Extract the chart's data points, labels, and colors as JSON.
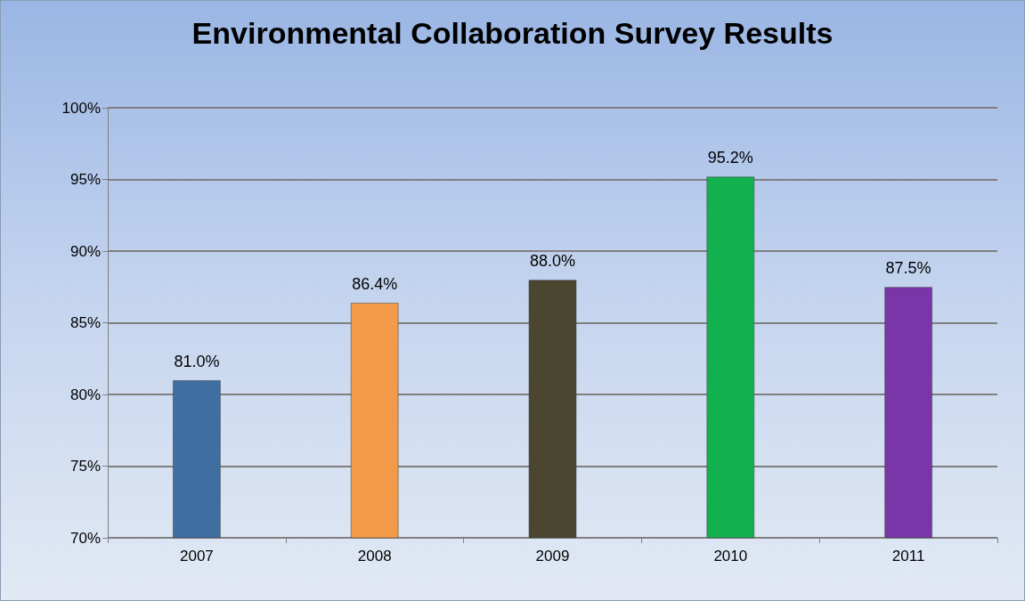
{
  "chart_data": {
    "type": "bar",
    "title": "Environmental Collaboration Survey Results",
    "categories": [
      "2007",
      "2008",
      "2009",
      "2010",
      "2011"
    ],
    "values": [
      81.0,
      86.4,
      88.0,
      95.2,
      87.5
    ],
    "colors": [
      "#3f6ea0",
      "#f39a48",
      "#4a4630",
      "#12b04f",
      "#7a36a8"
    ],
    "value_labels": [
      "81.0%",
      "86.4%",
      "88.0%",
      "95.2%",
      "87.5%"
    ],
    "ylim": [
      70,
      100
    ],
    "yticks": [
      {
        "value": 70,
        "label": "70%"
      },
      {
        "value": 75,
        "label": "75%"
      },
      {
        "value": 80,
        "label": "80%"
      },
      {
        "value": 85,
        "label": "85%"
      },
      {
        "value": 90,
        "label": "90%"
      },
      {
        "value": 95,
        "label": "95%"
      },
      {
        "value": 100,
        "label": "100%"
      }
    ],
    "grid": "y"
  }
}
